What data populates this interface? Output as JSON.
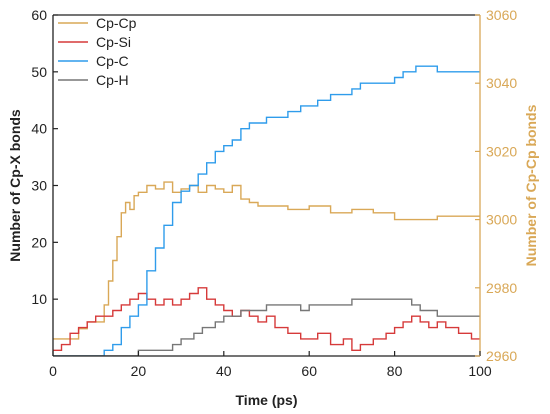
{
  "chart_data": {
    "type": "line",
    "title": "",
    "xlabel": "Time (ps)",
    "ylabel_left": "Number of Cp-X bonds",
    "ylabel_right": "Number of Cp-Cp bonds",
    "xlim": [
      0,
      100
    ],
    "ylim_left": [
      0,
      60
    ],
    "ylim_right": [
      2960,
      3060
    ],
    "xticks": [
      0,
      20,
      40,
      60,
      80,
      100
    ],
    "yticks_left": [
      10,
      20,
      30,
      40,
      50,
      60
    ],
    "yticks_right": [
      2960,
      2980,
      3000,
      3020,
      3040,
      3060
    ],
    "grid": false,
    "legend_position": "top-left",
    "colors": {
      "axis": "#222222",
      "right_axis": "#d9a857"
    },
    "series": [
      {
        "name": "Cp-Cp",
        "axis": "right",
        "color": "#d9a857",
        "x": [
          0,
          3,
          6,
          8,
          10,
          12,
          13,
          14,
          15,
          16,
          17,
          18,
          19,
          20,
          22,
          24,
          26,
          28,
          30,
          32,
          34,
          36,
          38,
          40,
          42,
          44,
          46,
          48,
          50,
          55,
          60,
          65,
          70,
          75,
          80,
          85,
          90,
          95,
          100
        ],
        "y": [
          2965,
          2965,
          2968,
          2970,
          2970,
          2975,
          2982,
          2988,
          2995,
          3002,
          3005,
          3003,
          3007,
          3008,
          3010,
          3009,
          3011,
          3008,
          3009,
          3010,
          3008,
          3010,
          3009,
          3008,
          3010,
          3006,
          3005,
          3004,
          3004,
          3003,
          3004,
          3002,
          3003,
          3002,
          3000,
          3000,
          3001,
          3001,
          3001
        ]
      },
      {
        "name": "Cp-Si",
        "axis": "left",
        "color": "#d63a3a",
        "x": [
          0,
          2,
          4,
          6,
          8,
          10,
          12,
          14,
          16,
          18,
          20,
          22,
          24,
          26,
          28,
          30,
          32,
          34,
          36,
          38,
          40,
          42,
          44,
          46,
          48,
          50,
          52,
          55,
          58,
          60,
          62,
          65,
          68,
          70,
          72,
          75,
          78,
          80,
          82,
          84,
          86,
          88,
          90,
          92,
          95,
          98,
          100
        ],
        "y": [
          1,
          2,
          4,
          5,
          6,
          7,
          7,
          8,
          9,
          10,
          11,
          10,
          9,
          10,
          9,
          10,
          11,
          12,
          10,
          9,
          8,
          7,
          8,
          7,
          6,
          7,
          5,
          4,
          3,
          3,
          4,
          2,
          3,
          1,
          2,
          3,
          4,
          5,
          6,
          7,
          6,
          5,
          6,
          5,
          4,
          3,
          3
        ]
      },
      {
        "name": "Cp-C",
        "axis": "left",
        "color": "#2f9ceb",
        "x": [
          0,
          8,
          10,
          12,
          14,
          16,
          18,
          20,
          22,
          24,
          26,
          28,
          30,
          32,
          34,
          36,
          38,
          40,
          42,
          44,
          46,
          48,
          50,
          52,
          55,
          58,
          60,
          62,
          65,
          68,
          70,
          72,
          75,
          78,
          80,
          82,
          85,
          88,
          90,
          92,
          95,
          98,
          100
        ],
        "y": [
          0,
          0,
          0,
          1,
          2,
          5,
          7,
          9,
          15,
          19,
          23,
          27,
          29,
          30,
          32,
          34,
          36,
          37,
          38,
          40,
          41,
          41,
          42,
          42,
          43,
          44,
          44,
          45,
          46,
          46,
          47,
          48,
          48,
          48,
          49,
          50,
          51,
          51,
          50,
          50,
          50,
          50,
          50
        ]
      },
      {
        "name": "Cp-H",
        "axis": "left",
        "color": "#777777",
        "x": [
          0,
          10,
          15,
          18,
          20,
          22,
          25,
          28,
          30,
          33,
          35,
          38,
          40,
          42,
          44,
          46,
          48,
          50,
          52,
          55,
          58,
          60,
          65,
          68,
          70,
          72,
          75,
          80,
          82,
          84,
          86,
          90,
          95,
          100
        ],
        "y": [
          0,
          0,
          0,
          0,
          1,
          1,
          1,
          2,
          3,
          4,
          5,
          6,
          7,
          7,
          8,
          8,
          8,
          9,
          9,
          9,
          8,
          9,
          9,
          9,
          10,
          10,
          10,
          10,
          10,
          9,
          8,
          7,
          7,
          7
        ]
      }
    ]
  }
}
